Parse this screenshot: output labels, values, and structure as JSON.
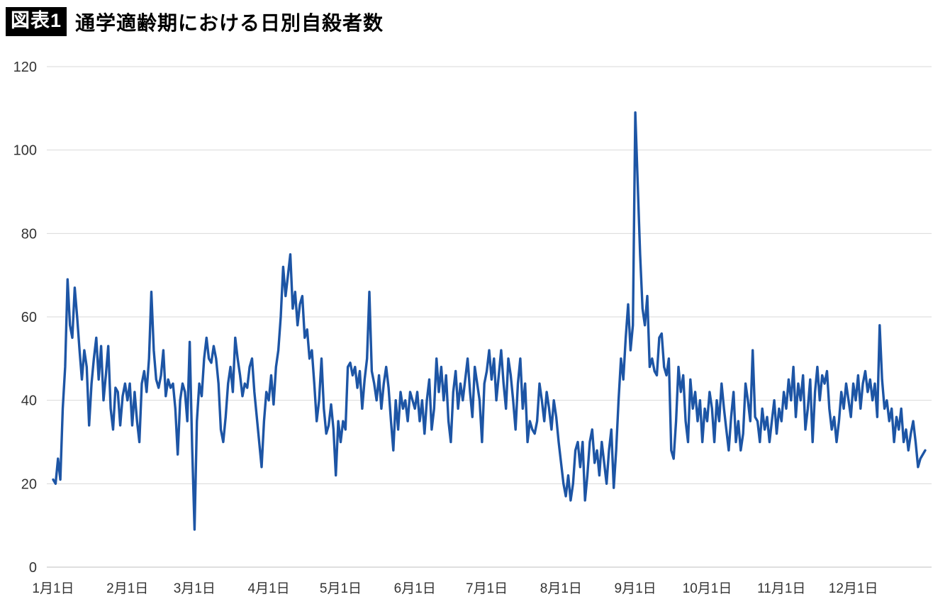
{
  "page": {
    "badge": "図表1",
    "title": "通学適齢期における日別自殺者数"
  },
  "chart_data": {
    "type": "line",
    "title": "通学適齢期における日別自殺者数",
    "series_name": "日別自殺者数",
    "line_color": "#1d55a5",
    "grid_color": "#d9d9d9",
    "axis_color": "#bfbfbf",
    "label_color": "#333333",
    "ylim": [
      0,
      120
    ],
    "y_ticks": [
      0,
      20,
      40,
      60,
      80,
      100,
      120
    ],
    "x_tick_labels": [
      "1月1日",
      "2月1日",
      "3月1日",
      "4月1日",
      "5月1日",
      "6月1日",
      "7月1日",
      "8月1日",
      "9月1日",
      "10月1日",
      "11月1日",
      "12月1日"
    ],
    "x_tick_day_index": [
      0,
      31,
      59,
      90,
      120,
      151,
      181,
      212,
      243,
      273,
      304,
      334
    ],
    "legend": "none",
    "grid": "horizontal",
    "values": [
      21,
      20,
      26,
      21,
      38,
      48,
      69,
      58,
      55,
      67,
      60,
      52,
      45,
      52,
      48,
      34,
      44,
      50,
      55,
      45,
      53,
      40,
      46,
      53,
      38,
      33,
      43,
      42,
      34,
      41,
      44,
      40,
      44,
      34,
      42,
      35,
      30,
      44,
      47,
      42,
      50,
      66,
      52,
      45,
      43,
      46,
      52,
      41,
      45,
      43,
      44,
      38,
      27,
      40,
      44,
      42,
      35,
      54,
      29,
      9,
      35,
      44,
      41,
      50,
      55,
      50,
      49,
      53,
      50,
      44,
      33,
      30,
      36,
      44,
      48,
      42,
      55,
      50,
      46,
      41,
      44,
      43,
      48,
      50,
      42,
      36,
      30,
      24,
      35,
      42,
      40,
      46,
      39,
      48,
      52,
      60,
      72,
      65,
      70,
      75,
      62,
      66,
      58,
      63,
      65,
      55,
      57,
      50,
      52,
      44,
      35,
      40,
      50,
      38,
      32,
      34,
      39,
      33,
      22,
      35,
      30,
      35,
      33,
      48,
      49,
      46,
      48,
      43,
      47,
      38,
      45,
      50,
      66,
      47,
      44,
      40,
      46,
      38,
      44,
      48,
      43,
      35,
      28,
      40,
      33,
      42,
      38,
      40,
      35,
      42,
      40,
      38,
      42,
      35,
      40,
      32,
      40,
      45,
      33,
      38,
      50,
      42,
      48,
      40,
      46,
      35,
      30,
      42,
      47,
      38,
      44,
      40,
      45,
      50,
      42,
      36,
      48,
      44,
      40,
      30,
      44,
      47,
      52,
      45,
      50,
      40,
      46,
      52,
      44,
      38,
      50,
      46,
      40,
      33,
      44,
      50,
      38,
      44,
      30,
      35,
      33,
      32,
      35,
      44,
      40,
      35,
      42,
      38,
      33,
      40,
      36,
      30,
      25,
      20,
      17,
      22,
      16,
      20,
      28,
      30,
      24,
      30,
      16,
      22,
      30,
      33,
      25,
      28,
      22,
      30,
      25,
      20,
      28,
      33,
      19,
      28,
      40,
      50,
      45,
      55,
      63,
      52,
      58,
      109,
      92,
      75,
      62,
      58,
      65,
      48,
      50,
      47,
      46,
      55,
      56,
      48,
      46,
      50,
      28,
      26,
      35,
      48,
      42,
      46,
      35,
      30,
      45,
      38,
      42,
      35,
      40,
      30,
      38,
      35,
      42,
      38,
      30,
      40,
      35,
      44,
      38,
      33,
      28,
      36,
      42,
      30,
      35,
      28,
      32,
      44,
      40,
      35,
      52,
      36,
      35,
      30,
      38,
      33,
      36,
      30,
      35,
      40,
      32,
      38,
      35,
      42,
      38,
      45,
      40,
      48,
      36,
      44,
      40,
      46,
      33,
      38,
      45,
      30,
      42,
      48,
      40,
      46,
      44,
      47,
      38,
      33,
      36,
      30,
      35,
      42,
      38,
      44,
      40,
      36,
      44,
      40,
      46,
      38,
      44,
      47,
      42,
      45,
      40,
      44,
      36,
      58,
      45,
      38,
      40,
      35,
      38,
      30,
      36,
      33,
      38,
      30,
      33,
      28,
      32,
      35,
      30,
      24,
      26,
      27,
      28
    ]
  }
}
